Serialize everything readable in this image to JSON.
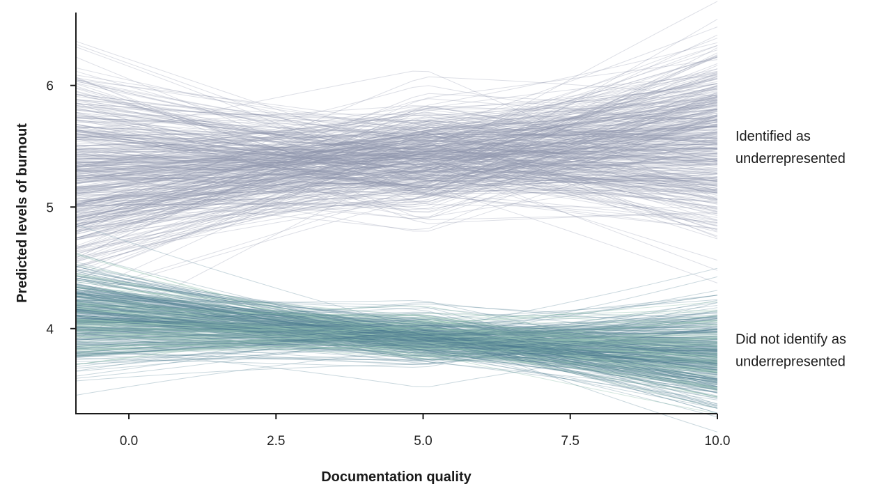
{
  "chart_data": {
    "type": "line",
    "xlabel": "Documentation quality",
    "ylabel": "Predicted levels of burnout",
    "xlim": [
      -0.9,
      10
    ],
    "ylim": [
      3.3,
      6.6
    ],
    "x_ticks": [
      "0.0",
      "2.5",
      "5.0",
      "7.5",
      "10.0"
    ],
    "y_ticks": [
      "4",
      "5",
      "6"
    ],
    "grid": false,
    "series": [
      {
        "name": "Identified as underrepresented",
        "label_lines": [
          "Identified as",
          "underrepresented"
        ],
        "color": "#8e94ad",
        "draws": 400,
        "start_x": -0.9,
        "end_x": 10,
        "center_at_start": 5.28,
        "center_at_end": 5.55,
        "spread_at_start": 0.4,
        "spread_at_end": 0.4,
        "spread_at_center": 0.22,
        "center_x": 5.0
      },
      {
        "name": "Did not identify as underrepresented",
        "label_lines": [
          "Did not identify as",
          "underrepresented"
        ],
        "color": "#4e7f91",
        "light_color": "#9cc8b5",
        "draws": 400,
        "start_x": -0.9,
        "end_x": 10,
        "center_at_start": 4.1,
        "center_at_end": 3.78,
        "spread_at_start": 0.2,
        "spread_at_end": 0.22,
        "spread_at_center": 0.1,
        "center_x": 5.0
      }
    ]
  }
}
